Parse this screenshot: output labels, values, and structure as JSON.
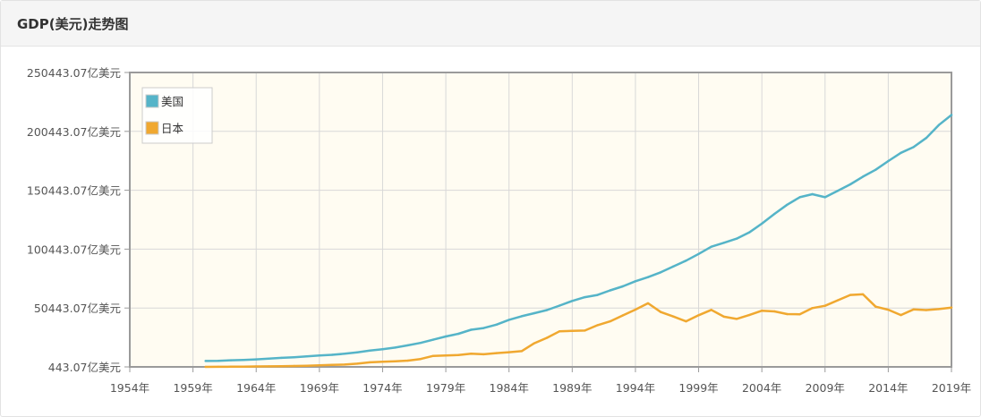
{
  "panel": {
    "title": "GDP(美元)走势图"
  },
  "chart_data": {
    "type": "line",
    "title": "GDP(美元)走势图",
    "xlabel": "",
    "ylabel": "",
    "xlim": [
      1954,
      2019
    ],
    "ylim": [
      443.07,
      250443.07
    ],
    "y_ticks": [
      {
        "value": 443.07,
        "label": "443.07亿美元"
      },
      {
        "value": 50443.07,
        "label": "50443.07亿美元"
      },
      {
        "value": 100443.07,
        "label": "100443.07亿美元"
      },
      {
        "value": 150443.07,
        "label": "150443.07亿美元"
      },
      {
        "value": 200443.07,
        "label": "200443.07亿美元"
      },
      {
        "value": 250443.07,
        "label": "250443.07亿美元"
      }
    ],
    "x_ticks": [
      {
        "value": 1954,
        "label": "1954年"
      },
      {
        "value": 1959,
        "label": "1959年"
      },
      {
        "value": 1964,
        "label": "1964年"
      },
      {
        "value": 1969,
        "label": "1969年"
      },
      {
        "value": 1974,
        "label": "1974年"
      },
      {
        "value": 1979,
        "label": "1979年"
      },
      {
        "value": 1984,
        "label": "1984年"
      },
      {
        "value": 1989,
        "label": "1989年"
      },
      {
        "value": 1994,
        "label": "1994年"
      },
      {
        "value": 1999,
        "label": "1999年"
      },
      {
        "value": 2004,
        "label": "2004年"
      },
      {
        "value": 2009,
        "label": "2009年"
      },
      {
        "value": 2014,
        "label": "2014年"
      },
      {
        "value": 2019,
        "label": "2019年"
      }
    ],
    "grid": true,
    "legend_position": "top-left",
    "colors": {
      "plot_bg": "#fffcf2",
      "grid": "#d8d8d8",
      "axis": "#9a9a9a"
    },
    "series": [
      {
        "name": "美国",
        "color": "#55b4c8",
        "points": [
          [
            1960,
            5433
          ],
          [
            1961,
            5633
          ],
          [
            1962,
            6051
          ],
          [
            1963,
            6386
          ],
          [
            1964,
            6858
          ],
          [
            1965,
            7437
          ],
          [
            1966,
            8150
          ],
          [
            1967,
            8617
          ],
          [
            1968,
            9402
          ],
          [
            1969,
            10196
          ],
          [
            1970,
            10734
          ],
          [
            1971,
            11649
          ],
          [
            1972,
            12793
          ],
          [
            1973,
            14257
          ],
          [
            1974,
            15452
          ],
          [
            1975,
            16843
          ],
          [
            1976,
            18731
          ],
          [
            1977,
            20813
          ],
          [
            1978,
            23516
          ],
          [
            1979,
            26273
          ],
          [
            1980,
            28573
          ],
          [
            1981,
            31942
          ],
          [
            1982,
            33433
          ],
          [
            1983,
            36346
          ],
          [
            1984,
            40408
          ],
          [
            1985,
            43470
          ],
          [
            1986,
            46013
          ],
          [
            1987,
            48702
          ],
          [
            1988,
            52525
          ],
          [
            1989,
            56419
          ],
          [
            1990,
            59631
          ],
          [
            1991,
            61507
          ],
          [
            1992,
            65392
          ],
          [
            1993,
            68860
          ],
          [
            1994,
            73194
          ],
          [
            1995,
            76640
          ],
          [
            1996,
            80732
          ],
          [
            1997,
            85773
          ],
          [
            1998,
            90626
          ],
          [
            1999,
            96310
          ],
          [
            2000,
            102523
          ],
          [
            2001,
            105818
          ],
          [
            2002,
            109363
          ],
          [
            2003,
            114581
          ],
          [
            2004,
            122137
          ],
          [
            2005,
            130366
          ],
          [
            2006,
            138146
          ],
          [
            2007,
            144519
          ],
          [
            2008,
            147128
          ],
          [
            2009,
            144487
          ],
          [
            2010,
            149921
          ],
          [
            2011,
            155426
          ],
          [
            2012,
            161970
          ],
          [
            2013,
            167848
          ],
          [
            2014,
            175217
          ],
          [
            2015,
            182193
          ],
          [
            2016,
            187072
          ],
          [
            2017,
            194854
          ],
          [
            2018,
            205802
          ],
          [
            2019,
            214332
          ]
        ]
      },
      {
        "name": "日本",
        "color": "#f0a830",
        "points": [
          [
            1960,
            443
          ],
          [
            1961,
            537
          ],
          [
            1962,
            609
          ],
          [
            1963,
            697
          ],
          [
            1964,
            819
          ],
          [
            1965,
            909
          ],
          [
            1966,
            1059
          ],
          [
            1967,
            1234
          ],
          [
            1968,
            1468
          ],
          [
            1969,
            1720
          ],
          [
            1970,
            2128
          ],
          [
            1971,
            2405
          ],
          [
            1972,
            3190
          ],
          [
            1973,
            4321
          ],
          [
            1974,
            4788
          ],
          [
            1975,
            5217
          ],
          [
            1976,
            5769
          ],
          [
            1977,
            7093
          ],
          [
            1978,
            9804
          ],
          [
            1979,
            10151
          ],
          [
            1980,
            10554
          ],
          [
            1981,
            11596
          ],
          [
            1982,
            11185
          ],
          [
            1983,
            12157
          ],
          [
            1984,
            12942
          ],
          [
            1985,
            13846
          ],
          [
            1986,
            20513
          ],
          [
            1987,
            25143
          ],
          [
            1988,
            30716
          ],
          [
            1989,
            30970
          ],
          [
            1990,
            31332
          ],
          [
            1991,
            35840
          ],
          [
            1992,
            39087
          ],
          [
            1993,
            44149
          ],
          [
            1994,
            49070
          ],
          [
            1995,
            54491
          ],
          [
            1996,
            47035
          ],
          [
            1997,
            43248
          ],
          [
            1998,
            39141
          ],
          [
            1999,
            44326
          ],
          [
            2000,
            48873
          ],
          [
            2001,
            43035
          ],
          [
            2002,
            41153
          ],
          [
            2003,
            44456
          ],
          [
            2004,
            48151
          ],
          [
            2005,
            47554
          ],
          [
            2006,
            45303
          ],
          [
            2007,
            45152
          ],
          [
            2008,
            50379
          ],
          [
            2009,
            52311
          ],
          [
            2010,
            57001
          ],
          [
            2011,
            61574
          ],
          [
            2012,
            62032
          ],
          [
            2013,
            51557
          ],
          [
            2014,
            48965
          ],
          [
            2015,
            44449
          ],
          [
            2016,
            49229
          ],
          [
            2017,
            48669
          ],
          [
            2018,
            49548
          ],
          [
            2019,
            50818
          ]
        ]
      }
    ]
  }
}
